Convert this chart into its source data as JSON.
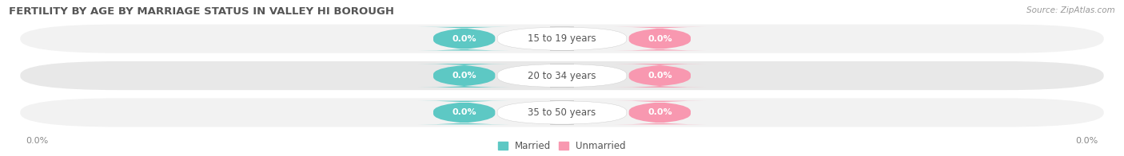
{
  "title": "FERTILITY BY AGE BY MARRIAGE STATUS IN VALLEY HI BOROUGH",
  "source": "Source: ZipAtlas.com",
  "categories": [
    "15 to 19 years",
    "20 to 34 years",
    "35 to 50 years"
  ],
  "married_values": [
    0.0,
    0.0,
    0.0
  ],
  "unmarried_values": [
    0.0,
    0.0,
    0.0
  ],
  "married_color": "#5DC8C4",
  "unmarried_color": "#F898B0",
  "bg_color_odd": "#F2F2F2",
  "bg_color_even": "#E8E8E8",
  "axis_left_label": "0.0%",
  "axis_right_label": "0.0%",
  "title_fontsize": 9.5,
  "source_fontsize": 7.5,
  "value_fontsize": 8,
  "category_fontsize": 8.5,
  "legend_fontsize": 8.5,
  "figsize": [
    14.06,
    1.96
  ],
  "dpi": 100
}
